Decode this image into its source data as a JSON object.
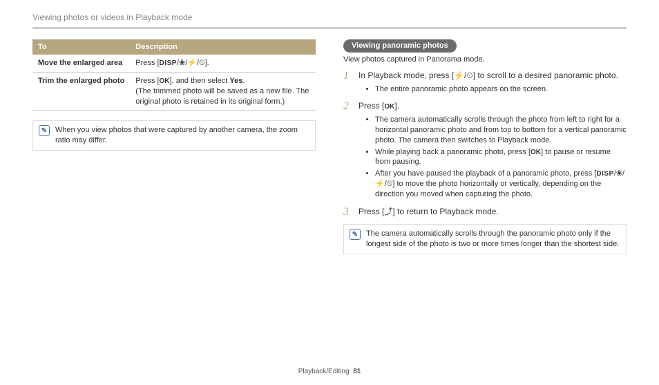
{
  "page": {
    "title": "Viewing photos or videos in Playback mode",
    "footer_section": "Playback/Editing",
    "footer_page": "81"
  },
  "table": {
    "header_to": "To",
    "header_desc": "Description",
    "rows": [
      {
        "head": "Move the enlarged area",
        "body_html": "Press [<span class='key-disp'>DISP</span>/<span class='sym'>❀</span>/<span class='sym'>⚡</span>/<span class='sym'>⏲</span>]."
      },
      {
        "head": "Trim the enlarged photo",
        "body_html": "Press [<span class='key-ok'>OK</span>], and then select <b>Yes</b>.<br>(The trimmed photo will be saved as a new file. The original photo is retained in its original form.)"
      }
    ]
  },
  "left_note": {
    "text": "When you view photos that were captured by another camera, the zoom ratio may differ."
  },
  "section": {
    "pill": "Viewing panoramic photos",
    "sub": "View photos captured in Panorama mode."
  },
  "steps": [
    {
      "text_html": "In Playback mode, press [<span class='sym'>⚡</span>/<span class='sym'>⏲</span>] to scroll to a desired panoramic photo.",
      "bullets_html": [
        "The entire panoramic photo appears on the screen."
      ]
    },
    {
      "text_html": "Press [<span class='key-ok'>OK</span>].",
      "bullets_html": [
        "The camera automatically scrolls through the photo from left to right for a horizontal panoramic photo and from top to bottom for a vertical panoramic photo. The camera then switches to Playback mode.",
        "While playing back a panoramic photo, press [<span class='key-ok'>OK</span>] to pause or resume from pausing.",
        "After you have paused the playback of a panoramic photo, press [<span class='key-disp'>DISP</span>/<span class='sym'>❀</span>/<span class='sym'>⚡</span>/<span class='sym'>⏲</span>] to move the photo horizontally or vertically, depending on the direction you moved when capturing the photo."
      ]
    },
    {
      "text_html": "Press [<span class='sym'>⤴</span>] to return to Playback mode.",
      "bullets_html": []
    }
  ],
  "right_note": {
    "text": "The camera automatically scrolls through the panoramic photo only if the longest side of the photo is two or more times longer than the shortest side."
  },
  "colors": {
    "header_bg": "#b6a781",
    "header_fg": "#ffffff",
    "note_border": "#dddddd",
    "note_icon": "#4a6fb3",
    "title_fg": "#888888",
    "stepnum_fg": "#b6a781"
  }
}
